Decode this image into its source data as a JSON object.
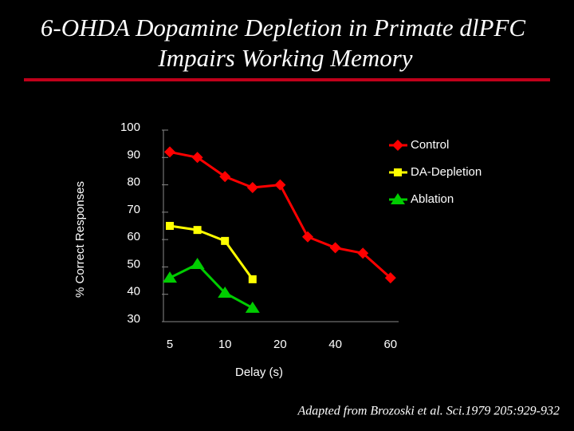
{
  "chart_data": {
    "type": "line",
    "title": [
      "6-OHDA Dopamine Depletion in Primate dlPFC",
      "Impairs Working Memory"
    ],
    "x_label": "Delay (s)",
    "y_label": "% Correct Responses",
    "categories": [
      "5",
      null,
      "10",
      null,
      "20",
      null,
      "40",
      null,
      "60"
    ],
    "series": [
      {
        "name": "Control",
        "color": "#ff0000",
        "marker": "diamond",
        "values": [
          92,
          90,
          83,
          79,
          80,
          61,
          57,
          55,
          46
        ]
      },
      {
        "name": "DA-Depletion",
        "color": "#ffff00",
        "marker": "square",
        "values": [
          65,
          63.5,
          59.5,
          45.5,
          null,
          null,
          null,
          null,
          null
        ]
      },
      {
        "name": "Ablation",
        "color": "#00cc00",
        "marker": "triangle",
        "values": [
          46,
          51,
          40.5,
          35,
          null,
          null,
          null,
          null,
          null
        ]
      }
    ],
    "ylim": [
      30,
      100
    ],
    "yticks": [
      30,
      40,
      50,
      60,
      70,
      80,
      90,
      100
    ],
    "legend": "upper-right",
    "grid": false,
    "source": "Adapted from Brozoski et al. Sci.1979 205:929-932"
  }
}
